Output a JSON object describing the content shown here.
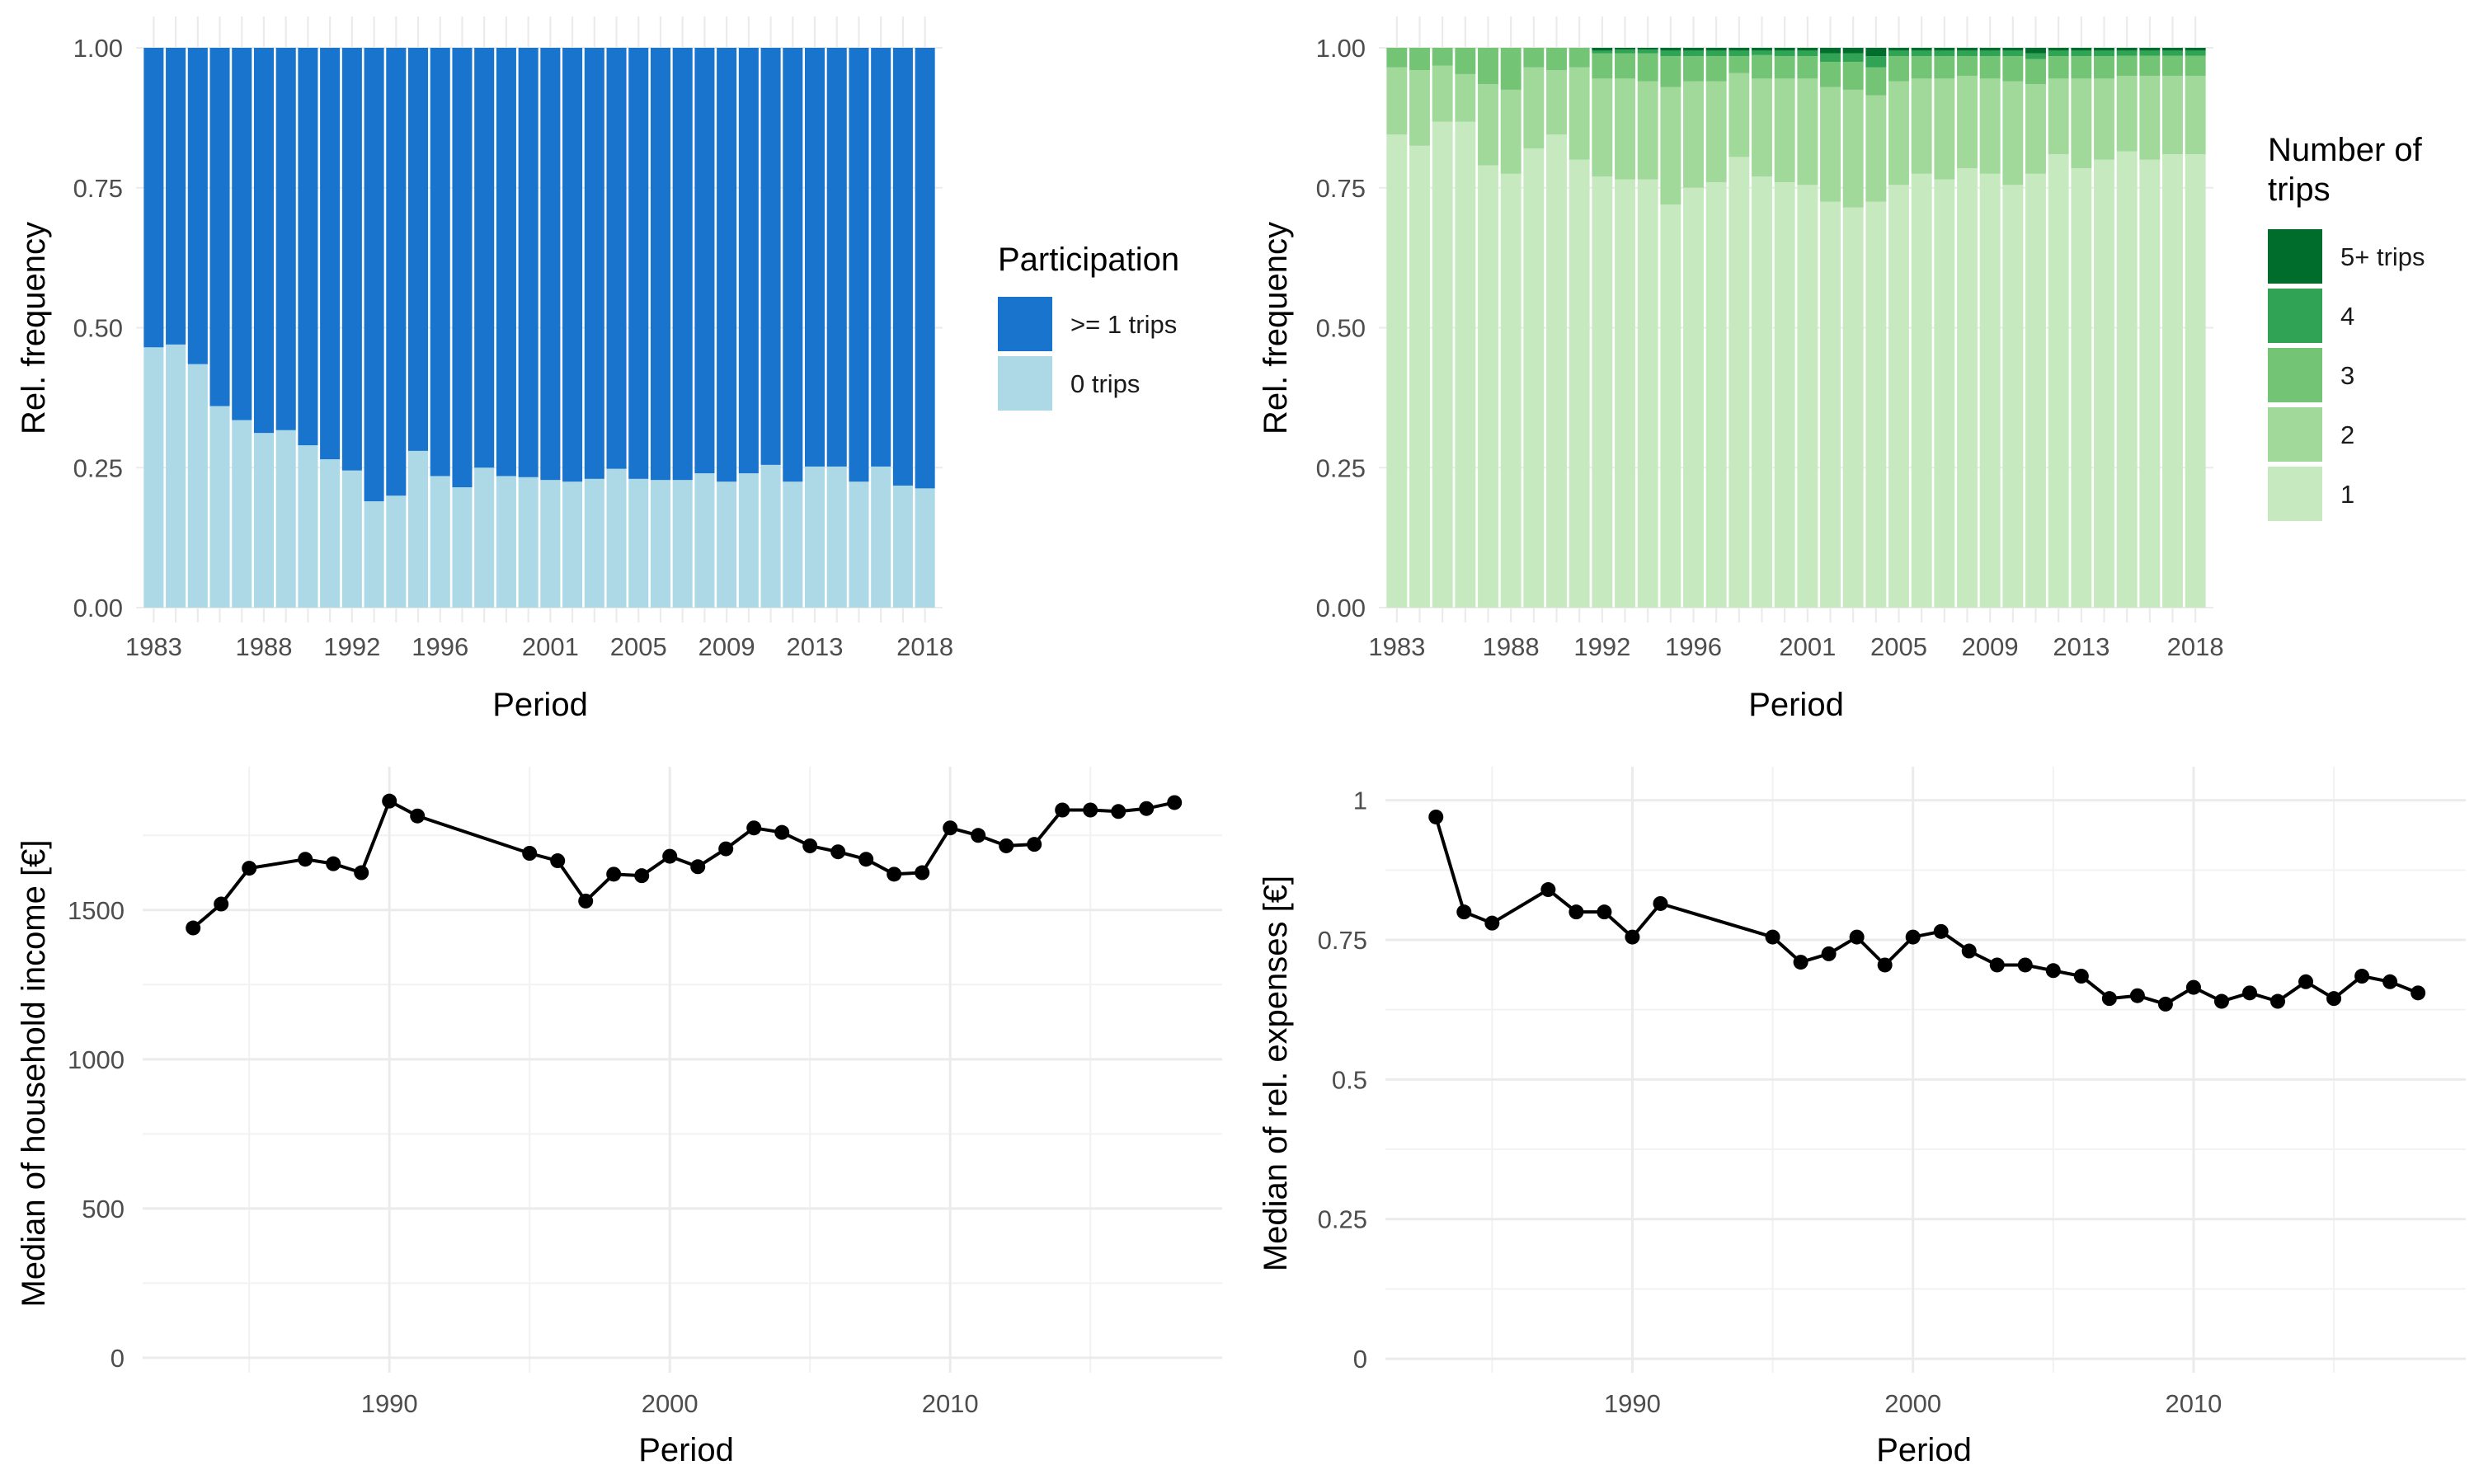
{
  "chart_data": [
    {
      "type": "bar",
      "stacked": true,
      "periods": [
        1983,
        1984,
        1985,
        1986,
        1987,
        1988,
        1989,
        1990,
        1991,
        1992,
        1993,
        1994,
        1995,
        1996,
        1997,
        1998,
        1999,
        2000,
        2001,
        2002,
        2003,
        2004,
        2005,
        2006,
        2007,
        2008,
        2009,
        2010,
        2011,
        2012,
        2013,
        2014,
        2015,
        2016,
        2017,
        2018
      ],
      "x_tick_labels": [
        "1983",
        "1988",
        "1992",
        "1996",
        "2001",
        "2005",
        "2009",
        "2013",
        "2018"
      ],
      "xlabel": "Period",
      "ylabel": "Rel. frequency",
      "ylim": [
        0,
        1
      ],
      "y_ticks": [
        0,
        0.25,
        0.5,
        0.75,
        1
      ],
      "y_tick_labels": [
        "0.00",
        "0.25",
        "0.50",
        "0.75",
        "1.00"
      ],
      "legend_title": "Participation",
      "legend_position": "right",
      "grid": true,
      "series": [
        {
          "name": "0 trips",
          "color": "#add8e6",
          "values": [
            0.465,
            0.47,
            0.435,
            0.36,
            0.335,
            0.312,
            0.317,
            0.29,
            0.265,
            0.245,
            0.19,
            0.2,
            0.28,
            0.235,
            0.215,
            0.25,
            0.235,
            0.233,
            0.228,
            0.225,
            0.23,
            0.248,
            0.23,
            0.228,
            0.228,
            0.24,
            0.225,
            0.24,
            0.255,
            0.225,
            0.252,
            0.252,
            0.225,
            0.252,
            0.218,
            0.213
          ]
        },
        {
          "name": ">= 1 trips",
          "color": "#1874cd",
          "values": [
            0.535,
            0.53,
            0.565,
            0.64,
            0.665,
            0.688,
            0.683,
            0.71,
            0.735,
            0.755,
            0.81,
            0.8,
            0.72,
            0.765,
            0.785,
            0.75,
            0.765,
            0.767,
            0.772,
            0.775,
            0.77,
            0.752,
            0.77,
            0.772,
            0.772,
            0.76,
            0.775,
            0.76,
            0.745,
            0.775,
            0.748,
            0.748,
            0.775,
            0.748,
            0.782,
            0.787
          ]
        }
      ]
    },
    {
      "type": "bar",
      "stacked": true,
      "periods": [
        1983,
        1984,
        1985,
        1986,
        1987,
        1988,
        1989,
        1990,
        1991,
        1992,
        1993,
        1994,
        1995,
        1996,
        1997,
        1998,
        1999,
        2000,
        2001,
        2002,
        2003,
        2004,
        2005,
        2006,
        2007,
        2008,
        2009,
        2010,
        2011,
        2012,
        2013,
        2014,
        2015,
        2016,
        2017,
        2018
      ],
      "x_tick_labels": [
        "1983",
        "1988",
        "1992",
        "1996",
        "2001",
        "2005",
        "2009",
        "2013",
        "2018"
      ],
      "xlabel": "Period",
      "ylabel": "Rel. frequency",
      "ylim": [
        0,
        1
      ],
      "y_ticks": [
        0,
        0.25,
        0.5,
        0.75,
        1
      ],
      "y_tick_labels": [
        "0.00",
        "0.25",
        "0.50",
        "0.75",
        "1.00"
      ],
      "legend_title": "Number of trips",
      "legend_title_lines": [
        "Number of",
        "trips"
      ],
      "legend_position": "right",
      "grid": true,
      "series": [
        {
          "name": "1",
          "color": "#c7e9c0",
          "values": [
            0.845,
            0.825,
            0.868,
            0.868,
            0.79,
            0.775,
            0.82,
            0.845,
            0.8,
            0.77,
            0.765,
            0.765,
            0.72,
            0.75,
            0.76,
            0.805,
            0.77,
            0.76,
            0.755,
            0.725,
            0.715,
            0.725,
            0.755,
            0.775,
            0.765,
            0.785,
            0.775,
            0.755,
            0.775,
            0.81,
            0.785,
            0.8,
            0.815,
            0.8,
            0.81,
            0.81
          ]
        },
        {
          "name": "2",
          "color": "#a1d99b",
          "values": [
            0.12,
            0.135,
            0.1,
            0.085,
            0.145,
            0.15,
            0.145,
            0.115,
            0.165,
            0.175,
            0.18,
            0.175,
            0.21,
            0.19,
            0.18,
            0.15,
            0.175,
            0.185,
            0.19,
            0.205,
            0.21,
            0.19,
            0.185,
            0.17,
            0.18,
            0.165,
            0.17,
            0.185,
            0.16,
            0.135,
            0.16,
            0.145,
            0.135,
            0.15,
            0.14,
            0.14
          ]
        },
        {
          "name": "3",
          "color": "#74c476",
          "values": [
            0.035,
            0.04,
            0.032,
            0.047,
            0.065,
            0.075,
            0.035,
            0.04,
            0.035,
            0.045,
            0.045,
            0.05,
            0.055,
            0.045,
            0.045,
            0.03,
            0.042,
            0.04,
            0.04,
            0.045,
            0.05,
            0.05,
            0.045,
            0.04,
            0.04,
            0.035,
            0.04,
            0.045,
            0.045,
            0.04,
            0.04,
            0.04,
            0.036,
            0.036,
            0.036,
            0.036
          ]
        },
        {
          "name": "4",
          "color": "#31a354",
          "values": [
            0,
            0,
            0,
            0,
            0,
            0,
            0,
            0,
            0,
            0.005,
            0.007,
            0.007,
            0.01,
            0.01,
            0.01,
            0.01,
            0.008,
            0.01,
            0.01,
            0.015,
            0.015,
            0.02,
            0.01,
            0.01,
            0.01,
            0.01,
            0.01,
            0.01,
            0.01,
            0.01,
            0.01,
            0.01,
            0.009,
            0.009,
            0.009,
            0.009
          ]
        },
        {
          "name": "5+ trips",
          "color": "#006d2c",
          "values": [
            0,
            0,
            0,
            0,
            0,
            0,
            0,
            0,
            0,
            0.005,
            0.003,
            0.003,
            0.005,
            0.005,
            0.005,
            0.005,
            0.005,
            0.005,
            0.005,
            0.01,
            0.01,
            0.015,
            0.005,
            0.005,
            0.005,
            0.005,
            0.005,
            0.005,
            0.01,
            0.005,
            0.005,
            0.005,
            0.005,
            0.005,
            0.005,
            0.005
          ]
        }
      ]
    },
    {
      "type": "line",
      "x": [
        1983,
        1984,
        1985,
        1987,
        1988,
        1989,
        1990,
        1991,
        1995,
        1996,
        1997,
        1998,
        1999,
        2000,
        2001,
        2002,
        2003,
        2004,
        2005,
        2006,
        2007,
        2008,
        2009,
        2010,
        2011,
        2012,
        2013,
        2014,
        2015,
        2016,
        2017,
        2018
      ],
      "y": [
        1440,
        1520,
        1640,
        1670,
        1655,
        1625,
        1865,
        1815,
        1690,
        1665,
        1530,
        1620,
        1615,
        1680,
        1645,
        1705,
        1775,
        1760,
        1715,
        1695,
        1670,
        1620,
        1625,
        1775,
        1750,
        1715,
        1720,
        1835,
        1835,
        1830,
        1840,
        1860
      ],
      "xlabel": "Period",
      "ylabel": "Median of household income [€]",
      "xlim": [
        1981.2,
        2019.7
      ],
      "ylim": [
        -50,
        1980
      ],
      "x_ticks": [
        1990,
        2000,
        2010
      ],
      "y_ticks": [
        0,
        500,
        1000,
        1500
      ],
      "grid": true,
      "color": "#000000"
    },
    {
      "type": "line",
      "x": [
        1983,
        1984,
        1985,
        1987,
        1988,
        1989,
        1990,
        1991,
        1995,
        1996,
        1997,
        1998,
        1999,
        2000,
        2001,
        2002,
        2003,
        2004,
        2005,
        2006,
        2007,
        2008,
        2009,
        2010,
        2011,
        2012,
        2013,
        2014,
        2015,
        2016,
        2017,
        2018
      ],
      "y": [
        0.97,
        0.8,
        0.78,
        0.84,
        0.8,
        0.8,
        0.755,
        0.815,
        0.755,
        0.71,
        0.725,
        0.755,
        0.705,
        0.755,
        0.765,
        0.73,
        0.705,
        0.705,
        0.695,
        0.685,
        0.645,
        0.65,
        0.635,
        0.665,
        0.64,
        0.655,
        0.64,
        0.675,
        0.645,
        0.685,
        0.675,
        0.655
      ],
      "xlabel": "Period",
      "ylabel": "Median of rel. expenses [€]",
      "xlim": [
        1981.2,
        2019.7
      ],
      "ylim": [
        -0.025,
        1.06
      ],
      "x_ticks": [
        1990,
        2000,
        2010
      ],
      "y_ticks": [
        0,
        0.25,
        0.5,
        0.75,
        1
      ],
      "y_tick_labels": [
        "0",
        "0.25",
        "0.5",
        "0.75",
        "1"
      ],
      "grid": true,
      "color": "#000000"
    }
  ]
}
